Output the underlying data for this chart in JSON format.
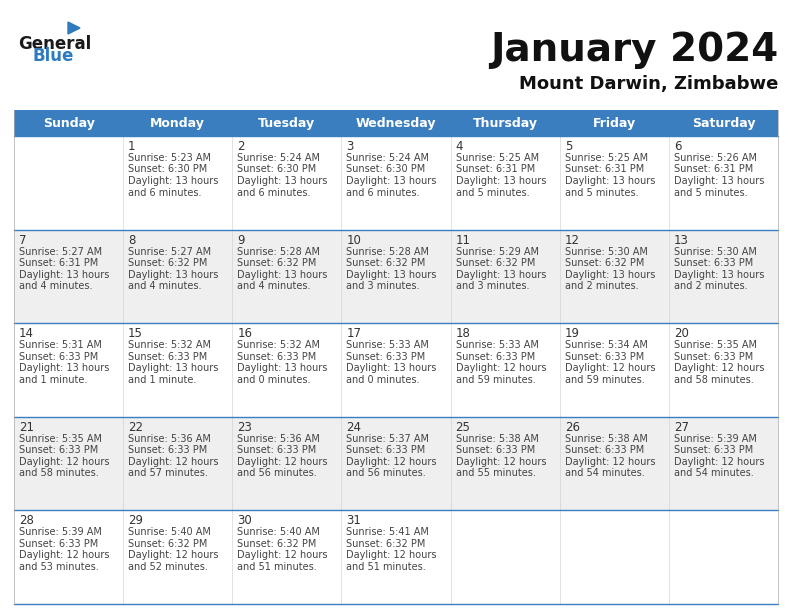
{
  "title": "January 2024",
  "subtitle": "Mount Darwin, Zimbabwe",
  "header_color": "#3a7ebf",
  "header_text_color": "#FFFFFF",
  "days_of_week": [
    "Sunday",
    "Monday",
    "Tuesday",
    "Wednesday",
    "Thursday",
    "Friday",
    "Saturday"
  ],
  "bg_color": "#FFFFFF",
  "row_bg_even": "#FFFFFF",
  "row_bg_odd": "#EFEFEF",
  "row_separator_color": "#3a7ebf",
  "grid_color": "#CCCCCC",
  "text_color": "#333333",
  "day_num_color": "#333333",
  "info_text_color": "#444444",
  "calendar": [
    [
      {
        "day": null,
        "lines": []
      },
      {
        "day": 1,
        "lines": [
          "Sunrise: 5:23 AM",
          "Sunset: 6:30 PM",
          "Daylight: 13 hours",
          "and 6 minutes."
        ]
      },
      {
        "day": 2,
        "lines": [
          "Sunrise: 5:24 AM",
          "Sunset: 6:30 PM",
          "Daylight: 13 hours",
          "and 6 minutes."
        ]
      },
      {
        "day": 3,
        "lines": [
          "Sunrise: 5:24 AM",
          "Sunset: 6:30 PM",
          "Daylight: 13 hours",
          "and 6 minutes."
        ]
      },
      {
        "day": 4,
        "lines": [
          "Sunrise: 5:25 AM",
          "Sunset: 6:31 PM",
          "Daylight: 13 hours",
          "and 5 minutes."
        ]
      },
      {
        "day": 5,
        "lines": [
          "Sunrise: 5:25 AM",
          "Sunset: 6:31 PM",
          "Daylight: 13 hours",
          "and 5 minutes."
        ]
      },
      {
        "day": 6,
        "lines": [
          "Sunrise: 5:26 AM",
          "Sunset: 6:31 PM",
          "Daylight: 13 hours",
          "and 5 minutes."
        ]
      }
    ],
    [
      {
        "day": 7,
        "lines": [
          "Sunrise: 5:27 AM",
          "Sunset: 6:31 PM",
          "Daylight: 13 hours",
          "and 4 minutes."
        ]
      },
      {
        "day": 8,
        "lines": [
          "Sunrise: 5:27 AM",
          "Sunset: 6:32 PM",
          "Daylight: 13 hours",
          "and 4 minutes."
        ]
      },
      {
        "day": 9,
        "lines": [
          "Sunrise: 5:28 AM",
          "Sunset: 6:32 PM",
          "Daylight: 13 hours",
          "and 4 minutes."
        ]
      },
      {
        "day": 10,
        "lines": [
          "Sunrise: 5:28 AM",
          "Sunset: 6:32 PM",
          "Daylight: 13 hours",
          "and 3 minutes."
        ]
      },
      {
        "day": 11,
        "lines": [
          "Sunrise: 5:29 AM",
          "Sunset: 6:32 PM",
          "Daylight: 13 hours",
          "and 3 minutes."
        ]
      },
      {
        "day": 12,
        "lines": [
          "Sunrise: 5:30 AM",
          "Sunset: 6:32 PM",
          "Daylight: 13 hours",
          "and 2 minutes."
        ]
      },
      {
        "day": 13,
        "lines": [
          "Sunrise: 5:30 AM",
          "Sunset: 6:33 PM",
          "Daylight: 13 hours",
          "and 2 minutes."
        ]
      }
    ],
    [
      {
        "day": 14,
        "lines": [
          "Sunrise: 5:31 AM",
          "Sunset: 6:33 PM",
          "Daylight: 13 hours",
          "and 1 minute."
        ]
      },
      {
        "day": 15,
        "lines": [
          "Sunrise: 5:32 AM",
          "Sunset: 6:33 PM",
          "Daylight: 13 hours",
          "and 1 minute."
        ]
      },
      {
        "day": 16,
        "lines": [
          "Sunrise: 5:32 AM",
          "Sunset: 6:33 PM",
          "Daylight: 13 hours",
          "and 0 minutes."
        ]
      },
      {
        "day": 17,
        "lines": [
          "Sunrise: 5:33 AM",
          "Sunset: 6:33 PM",
          "Daylight: 13 hours",
          "and 0 minutes."
        ]
      },
      {
        "day": 18,
        "lines": [
          "Sunrise: 5:33 AM",
          "Sunset: 6:33 PM",
          "Daylight: 12 hours",
          "and 59 minutes."
        ]
      },
      {
        "day": 19,
        "lines": [
          "Sunrise: 5:34 AM",
          "Sunset: 6:33 PM",
          "Daylight: 12 hours",
          "and 59 minutes."
        ]
      },
      {
        "day": 20,
        "lines": [
          "Sunrise: 5:35 AM",
          "Sunset: 6:33 PM",
          "Daylight: 12 hours",
          "and 58 minutes."
        ]
      }
    ],
    [
      {
        "day": 21,
        "lines": [
          "Sunrise: 5:35 AM",
          "Sunset: 6:33 PM",
          "Daylight: 12 hours",
          "and 58 minutes."
        ]
      },
      {
        "day": 22,
        "lines": [
          "Sunrise: 5:36 AM",
          "Sunset: 6:33 PM",
          "Daylight: 12 hours",
          "and 57 minutes."
        ]
      },
      {
        "day": 23,
        "lines": [
          "Sunrise: 5:36 AM",
          "Sunset: 6:33 PM",
          "Daylight: 12 hours",
          "and 56 minutes."
        ]
      },
      {
        "day": 24,
        "lines": [
          "Sunrise: 5:37 AM",
          "Sunset: 6:33 PM",
          "Daylight: 12 hours",
          "and 56 minutes."
        ]
      },
      {
        "day": 25,
        "lines": [
          "Sunrise: 5:38 AM",
          "Sunset: 6:33 PM",
          "Daylight: 12 hours",
          "and 55 minutes."
        ]
      },
      {
        "day": 26,
        "lines": [
          "Sunrise: 5:38 AM",
          "Sunset: 6:33 PM",
          "Daylight: 12 hours",
          "and 54 minutes."
        ]
      },
      {
        "day": 27,
        "lines": [
          "Sunrise: 5:39 AM",
          "Sunset: 6:33 PM",
          "Daylight: 12 hours",
          "and 54 minutes."
        ]
      }
    ],
    [
      {
        "day": 28,
        "lines": [
          "Sunrise: 5:39 AM",
          "Sunset: 6:33 PM",
          "Daylight: 12 hours",
          "and 53 minutes."
        ]
      },
      {
        "day": 29,
        "lines": [
          "Sunrise: 5:40 AM",
          "Sunset: 6:32 PM",
          "Daylight: 12 hours",
          "and 52 minutes."
        ]
      },
      {
        "day": 30,
        "lines": [
          "Sunrise: 5:40 AM",
          "Sunset: 6:32 PM",
          "Daylight: 12 hours",
          "and 51 minutes."
        ]
      },
      {
        "day": 31,
        "lines": [
          "Sunrise: 5:41 AM",
          "Sunset: 6:32 PM",
          "Daylight: 12 hours",
          "and 51 minutes."
        ]
      },
      {
        "day": null,
        "lines": []
      },
      {
        "day": null,
        "lines": []
      },
      {
        "day": null,
        "lines": []
      }
    ]
  ],
  "logo_text_general": "General",
  "logo_text_blue": "Blue",
  "logo_color_general": "#1A1A1A",
  "logo_color_blue": "#2E7BBF",
  "logo_triangle_color": "#2E7BBF",
  "title_fontsize": 28,
  "subtitle_fontsize": 13,
  "header_fontsize": 9,
  "day_num_fontsize": 8.5,
  "cell_text_fontsize": 7.0
}
